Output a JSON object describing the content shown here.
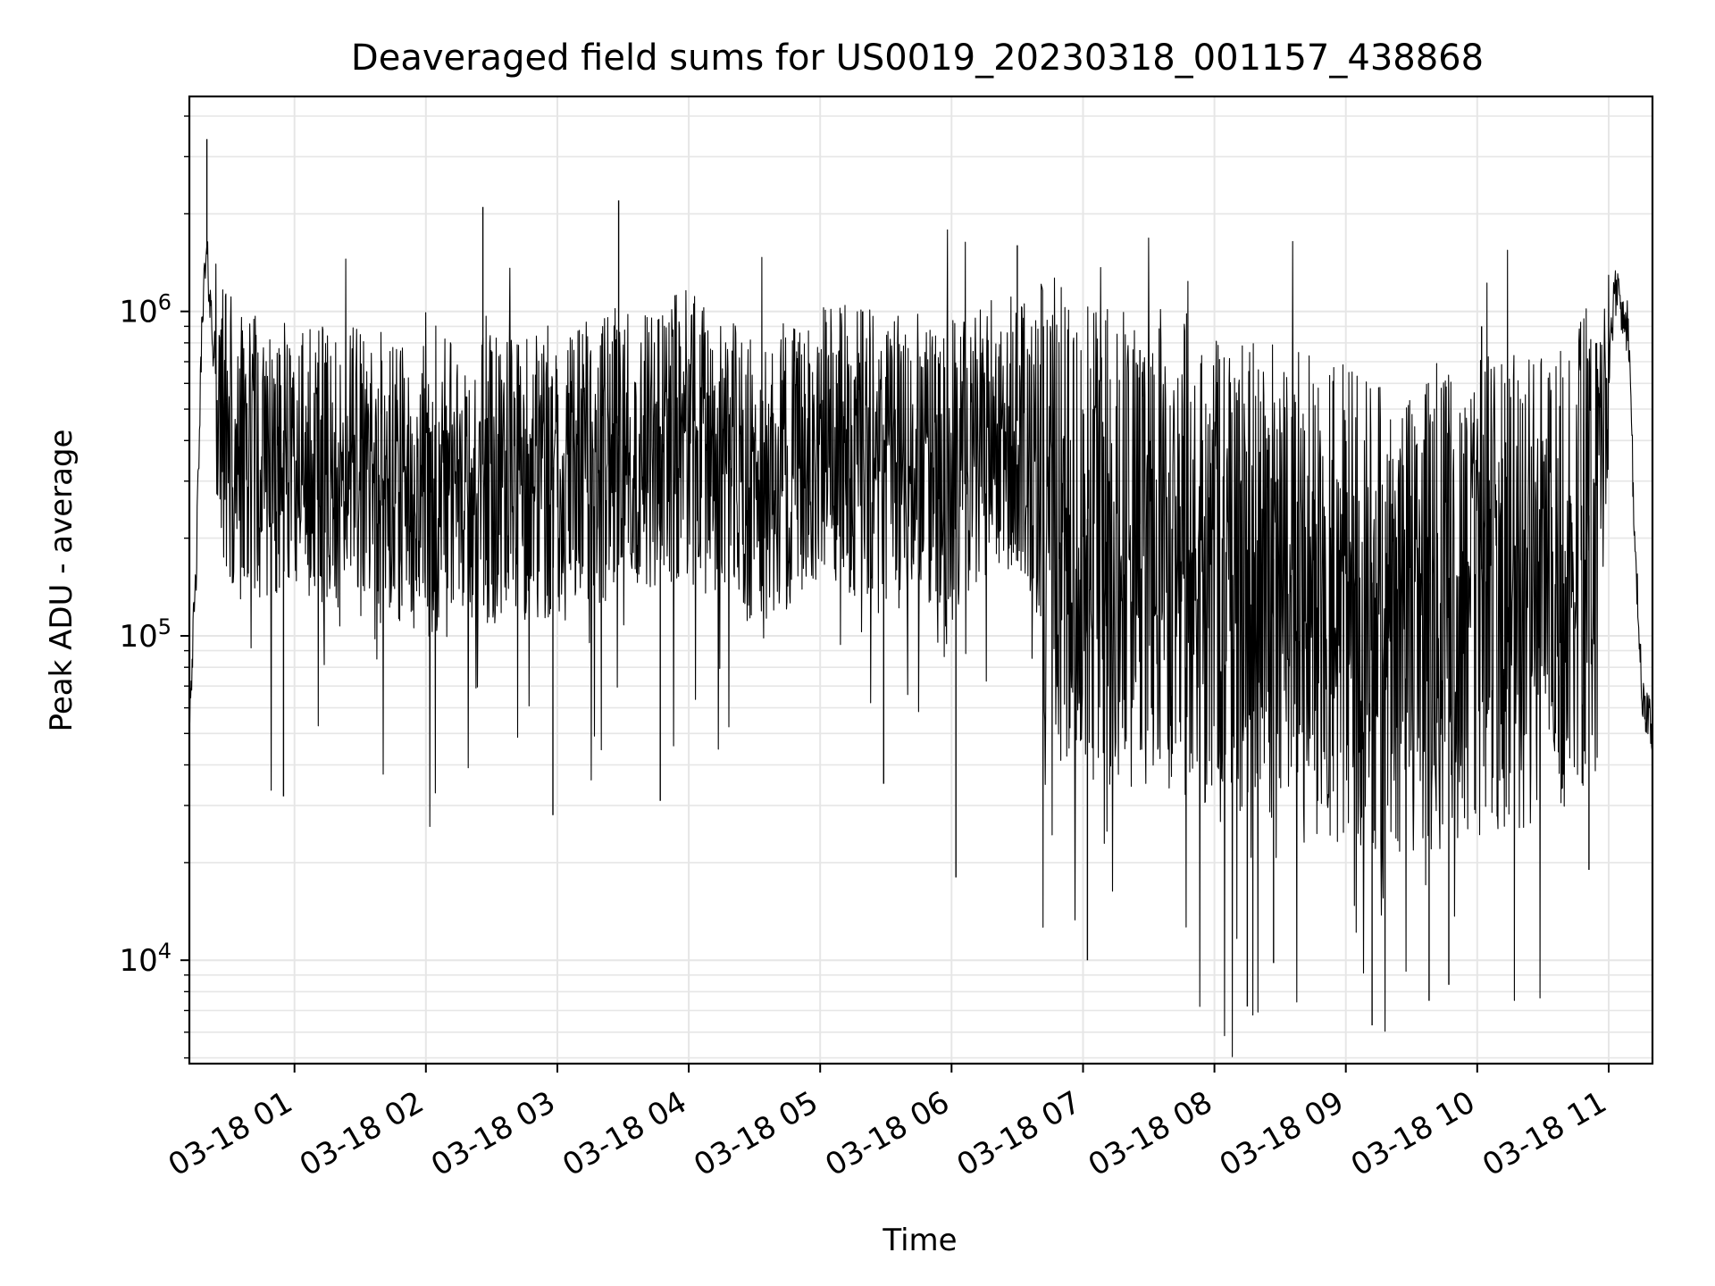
{
  "chart_data": {
    "type": "line",
    "title": "Deaveraged field sums for US0019_20230318_001157_438868",
    "xlabel": "Time",
    "ylabel": "Peak ADU - average",
    "xscale": "time",
    "yscale": "log",
    "xlim": [
      "2023-03-18 00:12",
      "2023-03-18 11:20"
    ],
    "ylim": [
      4800,
      4600000
    ],
    "x_ticks": [
      "03-18 01",
      "03-18 02",
      "03-18 03",
      "03-18 04",
      "03-18 05",
      "03-18 06",
      "03-18 07",
      "03-18 08",
      "03-18 09",
      "03-18 10",
      "03-18 11"
    ],
    "y_ticks": [
      {
        "value": 10000,
        "base": "10",
        "exp": "4"
      },
      {
        "value": 100000,
        "base": "10",
        "exp": "5"
      },
      {
        "value": 1000000,
        "base": "10",
        "exp": "6"
      }
    ],
    "grid": true,
    "line_color": "#000000",
    "series": [
      {
        "name": "",
        "x": [
          "2023-03-18 00:12",
          "2023-03-18 00:15",
          "2023-03-18 00:18",
          "2023-03-18 00:20",
          "2023-03-18 00:23",
          "2023-03-18 00:26",
          "2023-03-18 00:30",
          "2023-03-18 00:35",
          "2023-03-18 00:45",
          "2023-03-18 01:00",
          "2023-03-18 01:30",
          "2023-03-18 02:00",
          "2023-03-18 02:30",
          "2023-03-18 03:00",
          "2023-03-18 03:30",
          "2023-03-18 04:00",
          "2023-03-18 04:30",
          "2023-03-18 05:00",
          "2023-03-18 05:30",
          "2023-03-18 06:00",
          "2023-03-18 06:30",
          "2023-03-18 06:45",
          "2023-03-18 07:00",
          "2023-03-18 07:30",
          "2023-03-18 08:00",
          "2023-03-18 08:30",
          "2023-03-18 09:00",
          "2023-03-18 09:30",
          "2023-03-18 10:00",
          "2023-03-18 10:30",
          "2023-03-18 10:55",
          "2023-03-18 11:00",
          "2023-03-18 11:03",
          "2023-03-18 11:06",
          "2023-03-18 11:09",
          "2023-03-18 11:12",
          "2023-03-18 11:15",
          "2023-03-18 11:20"
        ],
        "y": [
          60000,
          150000,
          1100000,
          1500000,
          800000,
          600000,
          450000,
          400000,
          380000,
          360000,
          350000,
          320000,
          340000,
          330000,
          420000,
          460000,
          330000,
          420000,
          400000,
          380000,
          460000,
          300000,
          230000,
          220000,
          200000,
          170000,
          150000,
          140000,
          160000,
          170000,
          250000,
          700000,
          1200000,
          1000000,
          900000,
          200000,
          70000,
          50000
        ]
      }
    ],
    "spikes": {
      "x": [
        "2023-03-18 00:20",
        "2023-03-18 00:55",
        "2023-03-18 02:26",
        "2023-03-18 02:58",
        "2023-03-18 03:28",
        "2023-03-18 03:47",
        "2023-03-18 05:29",
        "2023-03-18 06:02",
        "2023-03-18 06:30",
        "2023-03-18 07:02",
        "2023-03-18 07:26",
        "2023-03-18 08:15",
        "2023-03-18 08:27",
        "2023-03-18 09:12",
        "2023-03-18 09:38",
        "2023-03-18 09:47",
        "2023-03-18 10:02",
        "2023-03-18 10:51"
      ],
      "y": [
        3400000,
        32000,
        2100000,
        28000,
        2200000,
        31000,
        35000,
        18000,
        1600000,
        10000,
        760000,
        7200,
        9800,
        6300,
        7500,
        8400,
        900000,
        19000
      ]
    }
  }
}
